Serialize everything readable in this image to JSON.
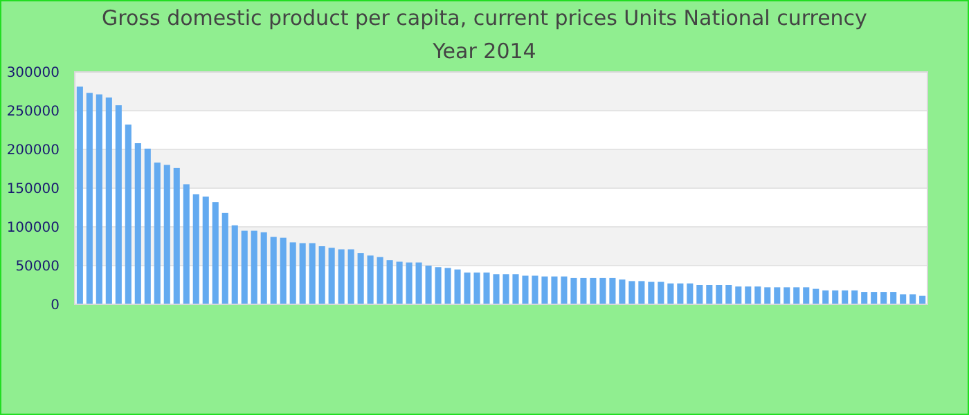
{
  "chart_data": {
    "type": "bar",
    "title": "Gross domestic product per capita, current prices Units National currency",
    "subtitle": "Year 2014",
    "categories": [
      null,
      null,
      null,
      null,
      null,
      null,
      null,
      null,
      null,
      null,
      null,
      null,
      null,
      null,
      null,
      null,
      null,
      null,
      null,
      null,
      null,
      null,
      null,
      null,
      null,
      null,
      null,
      null,
      null,
      null,
      null,
      null,
      null,
      null,
      null,
      null,
      null,
      null,
      null,
      null,
      null,
      null,
      null,
      null,
      null,
      null,
      null,
      null,
      null,
      null,
      null,
      null,
      null,
      null,
      null,
      null,
      null,
      null,
      null,
      null,
      null,
      null,
      null,
      null,
      null,
      null,
      null,
      null,
      null,
      null,
      null,
      null,
      null,
      null,
      null,
      null,
      null,
      null,
      null,
      null,
      null,
      null,
      null,
      null,
      null,
      null,
      null,
      null
    ],
    "values": [
      281000,
      273000,
      271000,
      267000,
      257000,
      232000,
      208000,
      201000,
      183000,
      180000,
      176000,
      155000,
      142000,
      139000,
      132000,
      118000,
      102000,
      95000,
      95000,
      93000,
      87000,
      86000,
      80000,
      79000,
      79000,
      75000,
      73000,
      71000,
      71000,
      66000,
      63000,
      61000,
      57000,
      55000,
      54000,
      54000,
      50000,
      48000,
      47000,
      45000,
      41000,
      41000,
      41000,
      39000,
      39000,
      39000,
      37000,
      37000,
      36000,
      36000,
      36000,
      34000,
      34000,
      34000,
      34000,
      34000,
      32000,
      30000,
      30000,
      29000,
      29000,
      27000,
      27000,
      27000,
      25000,
      25000,
      25000,
      25000,
      23000,
      23000,
      23000,
      22000,
      22000,
      22000,
      22000,
      22000,
      20000,
      18000,
      18000,
      18000,
      18000,
      16000,
      16000,
      16000,
      16000,
      13000,
      13000,
      11000
    ],
    "color": "#63aaf0",
    "ylim": [
      0,
      300000
    ],
    "yticks": [
      0,
      50000,
      100000,
      150000,
      200000,
      250000,
      300000
    ],
    "grid": "y"
  }
}
